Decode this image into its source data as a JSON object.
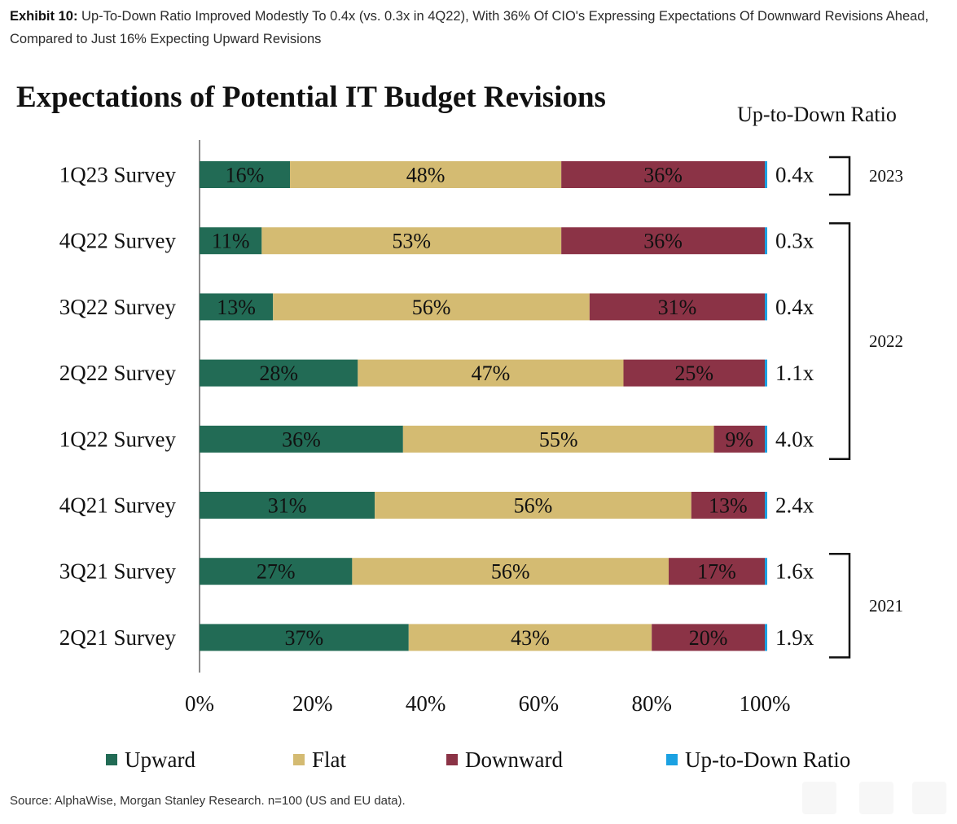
{
  "exhibit": {
    "label": "Exhibit 10:",
    "text": "Up-To-Down Ratio Improved Modestly To 0.4x (vs. 0.3x in 4Q22), With 36% Of CIO's Expressing Expectations Of Downward Revisions Ahead, Compared to Just 16% Expecting Upward Revisions"
  },
  "source": "Source: AlphaWise, Morgan Stanley Research. n=100 (US and EU data).",
  "chart_data": {
    "type": "bar",
    "orientation": "horizontal",
    "stacked": true,
    "title": "Expectations of Potential  IT Budget Revisions",
    "ratio_header": "Up-to-Down Ratio",
    "categories": [
      "1Q23 Survey",
      "4Q22 Survey",
      "3Q22 Survey",
      "2Q22 Survey",
      "1Q22 Survey",
      "4Q21 Survey",
      "3Q21 Survey",
      "2Q21 Survey"
    ],
    "series": [
      {
        "name": "Upward",
        "color": "#226b55",
        "values": [
          16,
          11,
          13,
          28,
          36,
          31,
          27,
          37
        ],
        "labels": [
          "16%",
          "11%",
          "13%",
          "28%",
          "36%",
          "31%",
          "27%",
          "37%"
        ]
      },
      {
        "name": "Flat",
        "color": "#d4bb72",
        "values": [
          48,
          53,
          56,
          47,
          55,
          56,
          56,
          43
        ],
        "labels": [
          "48%",
          "53%",
          "56%",
          "47%",
          "55%",
          "56%",
          "56%",
          "43%"
        ]
      },
      {
        "name": "Downward",
        "color": "#8b3346",
        "values": [
          36,
          36,
          31,
          25,
          9,
          13,
          17,
          20
        ],
        "labels": [
          "36%",
          "36%",
          "31%",
          "25%",
          "9%",
          "13%",
          "17%",
          "20%"
        ]
      }
    ],
    "ratio": {
      "name": "Up-to-Down Ratio",
      "color": "#1ba1e2",
      "labels": [
        "0.4x",
        "0.3x",
        "0.4x",
        "1.1x",
        "4.0x",
        "2.4x",
        "1.6x",
        "1.9x"
      ]
    },
    "year_groups": [
      {
        "label": "2023",
        "from": 0,
        "to": 0
      },
      {
        "label": "2022",
        "from": 1,
        "to": 4
      },
      {
        "label": "2021",
        "from": 6,
        "to": 7
      }
    ],
    "x_ticks": [
      "0%",
      "20%",
      "40%",
      "60%",
      "80%",
      "100%"
    ],
    "xlim": [
      0,
      100
    ],
    "legend_position": "bottom",
    "grid": false
  }
}
